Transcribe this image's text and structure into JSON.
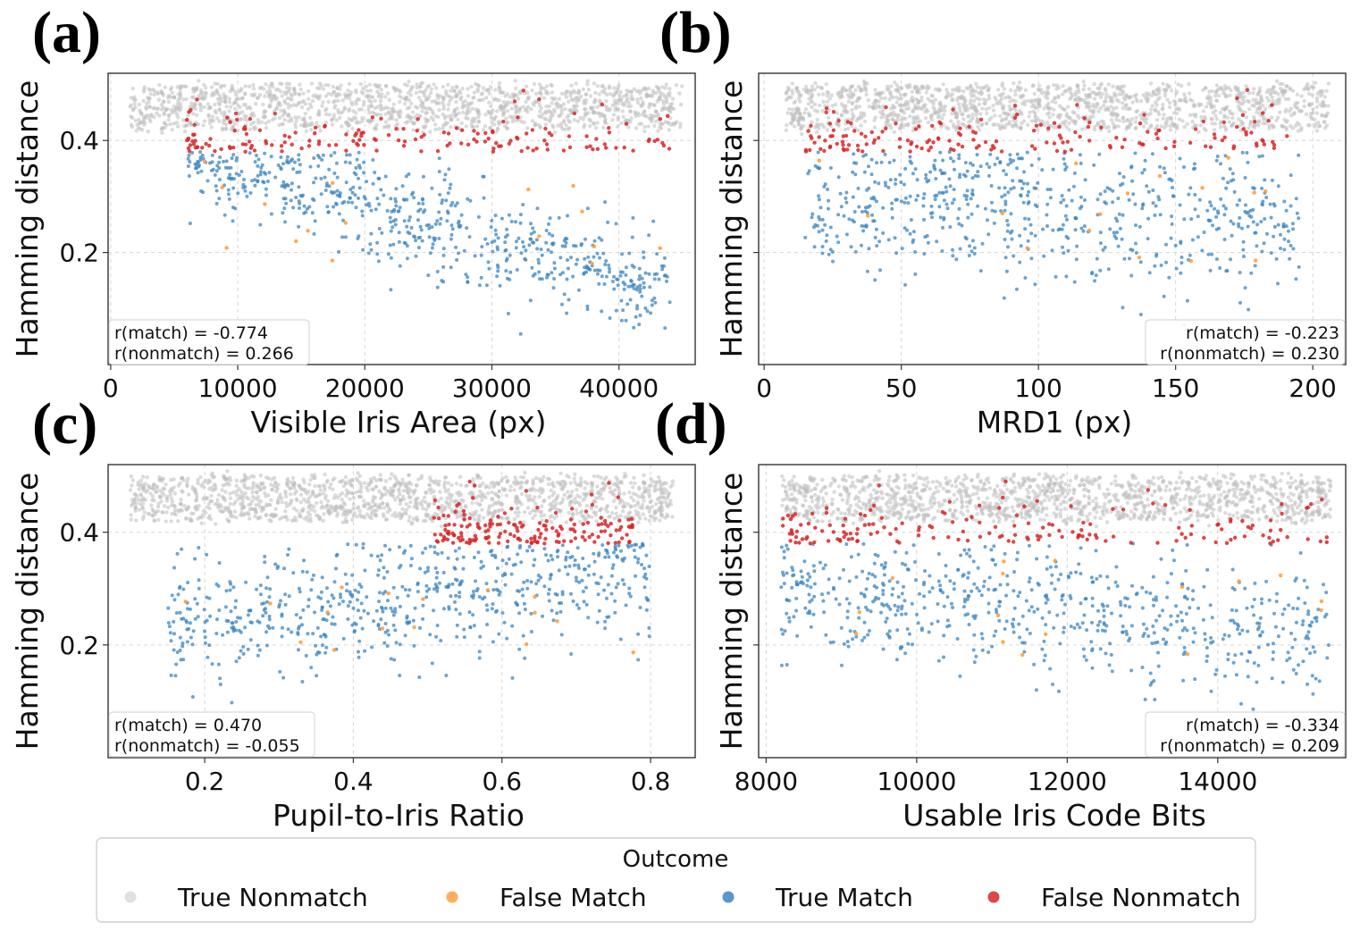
{
  "colors": {
    "true_nonmatch": "#bdbdbd",
    "false_match": "#ff9f40",
    "true_match": "#3c86c0",
    "false_nonmatch": "#d62728"
  },
  "legend": {
    "title": "Outcome",
    "items": [
      {
        "key": "true_nonmatch",
        "label": "True Nonmatch"
      },
      {
        "key": "false_match",
        "label": "False Match"
      },
      {
        "key": "true_match",
        "label": "True Match"
      },
      {
        "key": "false_nonmatch",
        "label": "False Nonmatch"
      }
    ]
  },
  "chart_data": [
    {
      "panel": "(a)",
      "type": "scatter",
      "xlabel": "Visible Iris Area (px)",
      "ylabel": "Hamming distance",
      "xlim": [
        -200,
        46000
      ],
      "ylim": [
        0.0,
        0.52
      ],
      "xticks": [
        0,
        10000,
        20000,
        30000,
        40000
      ],
      "xtick_labels": [
        "0",
        "10000",
        "20000",
        "30000",
        "40000"
      ],
      "yticks": [
        0.2,
        0.4
      ],
      "ytick_labels": [
        "0.2",
        "0.4"
      ],
      "stats": [
        "r(match) = -0.774",
        "r(nonmatch) = 0.266"
      ],
      "stats_position": "bottom-left",
      "threshold": 0.38,
      "nonmatch_band": [
        0.42,
        0.5
      ],
      "x_range": [
        1500,
        45000
      ],
      "match": {
        "x_range": [
          6000,
          44000
        ],
        "trend": [
          [
            6000,
            0.37
          ],
          [
            44000,
            0.13
          ]
        ],
        "spread": 0.045
      }
    },
    {
      "panel": "(b)",
      "type": "scatter",
      "xlabel": "MRD1 (px)",
      "ylabel": "Hamming distance",
      "xlim": [
        -2,
        212
      ],
      "ylim": [
        0.0,
        0.52
      ],
      "xticks": [
        0,
        50,
        100,
        150,
        200
      ],
      "xtick_labels": [
        "0",
        "50",
        "100",
        "150",
        "200"
      ],
      "yticks": [
        0.2,
        0.4
      ],
      "ytick_labels": [
        "0.2",
        "0.4"
      ],
      "stats": [
        "r(match) = -0.223",
        "r(nonmatch) = 0.230"
      ],
      "stats_position": "bottom-right",
      "threshold": 0.38,
      "nonmatch_band": [
        0.42,
        0.5
      ],
      "x_range": [
        8,
        206
      ],
      "match": {
        "x_range": [
          15,
          195
        ],
        "trend": [
          [
            15,
            0.3
          ],
          [
            195,
            0.25
          ]
        ],
        "spread": 0.065
      }
    },
    {
      "panel": "(c)",
      "type": "scatter",
      "xlabel": "Pupil-to-Iris Ratio",
      "ylabel": "Hamming distance",
      "xlim": [
        0.07,
        0.86
      ],
      "ylim": [
        0.0,
        0.52
      ],
      "xticks": [
        0.2,
        0.4,
        0.6,
        0.8
      ],
      "xtick_labels": [
        "0.2",
        "0.4",
        "0.6",
        "0.8"
      ],
      "yticks": [
        0.2,
        0.4
      ],
      "ytick_labels": [
        "0.2",
        "0.4"
      ],
      "stats": [
        "r(match) = 0.470",
        "r(nonmatch) = -0.055"
      ],
      "stats_position": "bottom-left",
      "threshold": 0.38,
      "nonmatch_band": [
        0.42,
        0.5
      ],
      "x_range": [
        0.1,
        0.83
      ],
      "match": {
        "x_range": [
          0.15,
          0.8
        ],
        "trend": [
          [
            0.15,
            0.23
          ],
          [
            0.8,
            0.33
          ]
        ],
        "spread": 0.055
      }
    },
    {
      "panel": "(d)",
      "type": "scatter",
      "xlabel": "Usable Iris Code Bits",
      "ylabel": "Hamming distance",
      "xlim": [
        7900,
        15700
      ],
      "ylim": [
        0.0,
        0.52
      ],
      "xticks": [
        8000,
        10000,
        12000,
        14000
      ],
      "xtick_labels": [
        "8000",
        "10000",
        "12000",
        "14000"
      ],
      "yticks": [
        0.2,
        0.4
      ],
      "ytick_labels": [
        "0.2",
        "0.4"
      ],
      "stats": [
        "r(match) = -0.334",
        "r(nonmatch) = 0.209"
      ],
      "stats_position": "bottom-right",
      "threshold": 0.38,
      "nonmatch_band": [
        0.42,
        0.5
      ],
      "x_range": [
        8200,
        15500
      ],
      "match": {
        "x_range": [
          8200,
          15500
        ],
        "trend": [
          [
            8200,
            0.3
          ],
          [
            15500,
            0.22
          ]
        ],
        "spread": 0.06
      }
    }
  ]
}
